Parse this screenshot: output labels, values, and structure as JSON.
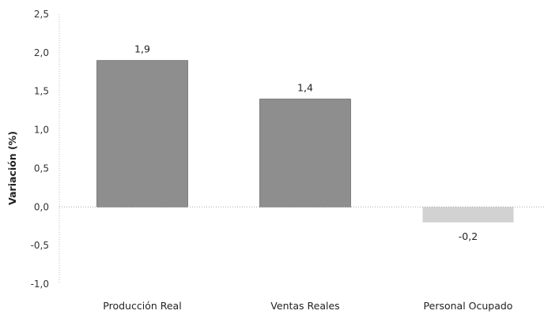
{
  "chart_data": {
    "type": "bar",
    "title": "",
    "xlabel": "",
    "ylabel": "Variación (%)",
    "categories": [
      "Producción Real",
      "Ventas Reales",
      "Personal Ocupado"
    ],
    "values": [
      1.9,
      1.4,
      -0.2
    ],
    "data_labels": [
      "1,9",
      "1,4",
      "-0,2"
    ],
    "ylim": [
      -1.0,
      2.5
    ],
    "yticks": [
      2.5,
      2.0,
      1.5,
      1.0,
      0.5,
      0.0,
      -0.5,
      -1.0
    ],
    "ytick_labels": [
      "2,5",
      "2,0",
      "1,5",
      "1,0",
      "0,5",
      "0,0",
      "-0,5",
      "-1,0"
    ],
    "grid": false,
    "bar_colors": [
      "#8e8e8e",
      "#8e8e8e",
      "#d2d2d2"
    ]
  }
}
